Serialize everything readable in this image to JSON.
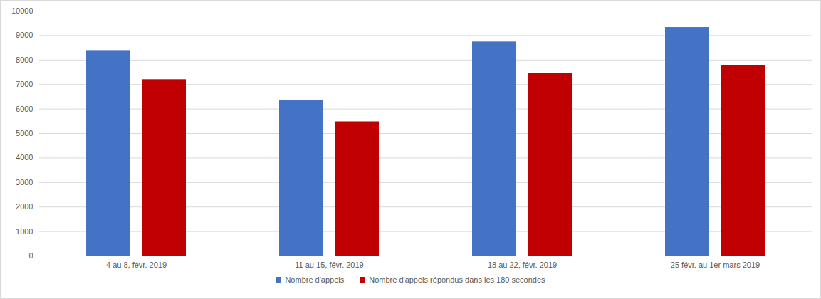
{
  "chart_data": {
    "type": "bar",
    "categories": [
      "4 au 8, févr. 2019",
      "11 au 15, févr. 2019",
      "18 au 22, févr. 2019",
      "25 févr. au 1er mars 2019"
    ],
    "series": [
      {
        "name": "Nombre d'appels",
        "color": "#4472c4",
        "values": [
          8390,
          6340,
          8740,
          9330
        ]
      },
      {
        "name": "Nombre d'appels répondus dans les 180 secondes",
        "color": "#c00000",
        "values": [
          7200,
          5480,
          7460,
          7780
        ]
      }
    ],
    "ylim": [
      0,
      10000
    ],
    "yticks": [
      0,
      1000,
      2000,
      3000,
      4000,
      5000,
      6000,
      7000,
      8000,
      9000,
      10000
    ],
    "grid": true,
    "legend": "bottom"
  }
}
